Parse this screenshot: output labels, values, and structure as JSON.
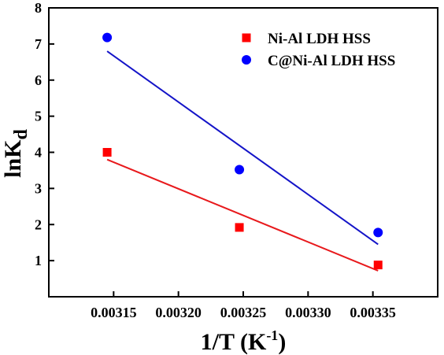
{
  "chart_data": {
    "type": "scatter",
    "xlabel": "1/T (K",
    "xlabel_sup": "-1",
    "xlabel_end": ")",
    "ylabel": "lnK",
    "ylabel_sub": "d",
    "xlim": [
      0.0031,
      0.0034
    ],
    "ylim": [
      0,
      8
    ],
    "x_ticks": [
      0.00315,
      0.0032,
      0.00325,
      0.0033,
      0.00335
    ],
    "x_tick_labels": [
      "0.00315",
      "0.00320",
      "0.00325",
      "0.00330",
      "0.00335"
    ],
    "y_ticks": [
      1,
      2,
      3,
      4,
      5,
      6,
      7,
      8
    ],
    "y_tick_labels": [
      "1",
      "2",
      "3",
      "4",
      "5",
      "6",
      "7",
      "8"
    ],
    "grid": false,
    "legend_position": "top-right",
    "series": [
      {
        "name": "Ni-Al LDH HSS",
        "marker": "square",
        "color": "#ff0000",
        "line_color": "#e8191c",
        "x": [
          0.003145,
          0.003247,
          0.003354
        ],
        "y": [
          4.0,
          1.92,
          0.88
        ],
        "fit": [
          [
            0.003145,
            3.8
          ],
          [
            0.003354,
            0.72
          ]
        ]
      },
      {
        "name": "C@Ni-Al LDH HSS",
        "marker": "circle",
        "color": "#0000ff",
        "line_color": "#1414c8",
        "x": [
          0.003145,
          0.003247,
          0.003354
        ],
        "y": [
          7.18,
          3.52,
          1.78
        ],
        "fit": [
          [
            0.003145,
            6.8
          ],
          [
            0.003354,
            1.45
          ]
        ]
      }
    ]
  }
}
